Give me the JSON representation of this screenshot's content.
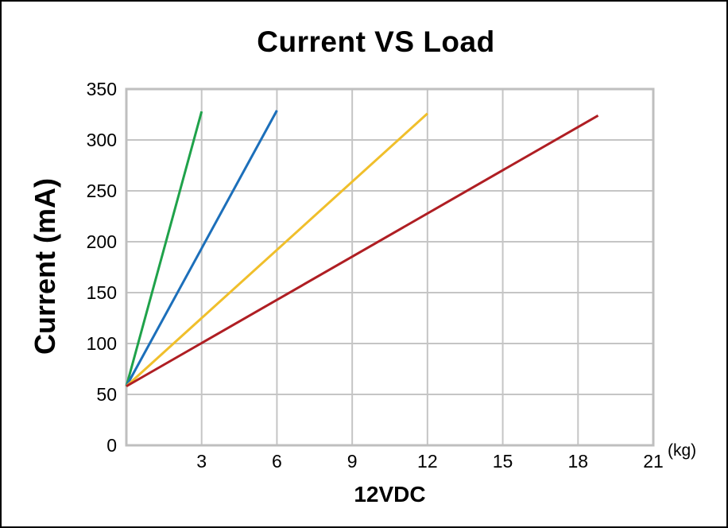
{
  "chart_data": {
    "type": "line",
    "title": "Current VS Load",
    "xlabel": "12VDC",
    "ylabel": "Current (mA)",
    "x_unit": "(kg)",
    "xlim": [
      0,
      21
    ],
    "ylim": [
      0,
      350
    ],
    "xticks": [
      3,
      6,
      9,
      12,
      15,
      18,
      21
    ],
    "yticks": [
      0,
      50,
      100,
      150,
      200,
      250,
      300,
      350
    ],
    "grid": true,
    "legend": false,
    "background_color": "#ffffff",
    "gridline_color": "#c5c5c5",
    "frame_color": "#bfbfbf",
    "series": [
      {
        "name": "green-line",
        "color": "#1fa24a",
        "points": [
          [
            0,
            58
          ],
          [
            3,
            328
          ]
        ]
      },
      {
        "name": "blue-line",
        "color": "#1c6fba",
        "points": [
          [
            0,
            58
          ],
          [
            6,
            329
          ]
        ]
      },
      {
        "name": "yellow-line",
        "color": "#f0bf2b",
        "points": [
          [
            0,
            58
          ],
          [
            12,
            326
          ]
        ]
      },
      {
        "name": "red-line",
        "color": "#af1e23",
        "points": [
          [
            0,
            58
          ],
          [
            18.8,
            324
          ]
        ]
      }
    ]
  }
}
